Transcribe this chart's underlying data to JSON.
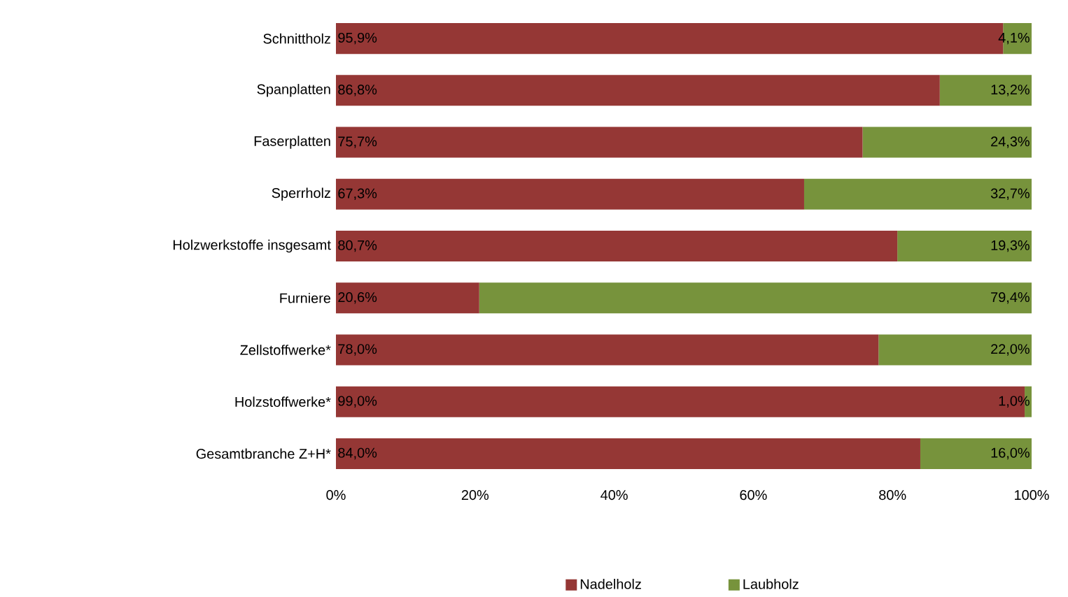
{
  "chart_data": {
    "type": "bar",
    "orientation": "horizontal",
    "stacked": true,
    "categories": [
      "Schnittholz",
      "Spanplatten",
      "Faserplatten",
      "Sperrholz",
      "Holzwerkstoffe insgesamt",
      "Furniere",
      "Zellstoffwerke*",
      "Holzstoffwerke*",
      "Gesamtbranche Z+H*"
    ],
    "series": [
      {
        "name": "Nadelholz",
        "color": "#953735",
        "values": [
          95.9,
          86.8,
          75.7,
          67.3,
          80.7,
          20.6,
          78.0,
          99.0,
          84.0
        ],
        "value_labels": [
          "95,9%",
          "86,8%",
          "75,7%",
          "67,3%",
          "80,7%",
          "20,6%",
          "78,0%",
          "99,0%",
          "84,0%"
        ]
      },
      {
        "name": "Laubholz",
        "color": "#77933c",
        "values": [
          4.1,
          13.2,
          24.3,
          32.7,
          19.3,
          79.4,
          22.0,
          1.0,
          16.0
        ],
        "value_labels": [
          "4,1%",
          "13,2%",
          "24,3%",
          "32,7%",
          "19,3%",
          "79,4%",
          "22,0%",
          "1,0%",
          "16,0%"
        ]
      }
    ],
    "xlim": [
      0,
      100
    ],
    "xticks": [
      {
        "value": 0,
        "label": "0%"
      },
      {
        "value": 20,
        "label": "20%"
      },
      {
        "value": 40,
        "label": "40%"
      },
      {
        "value": 60,
        "label": "60%"
      },
      {
        "value": 80,
        "label": "80%"
      },
      {
        "value": 100,
        "label": "100%"
      }
    ],
    "grid": false,
    "legend": "bottom"
  }
}
